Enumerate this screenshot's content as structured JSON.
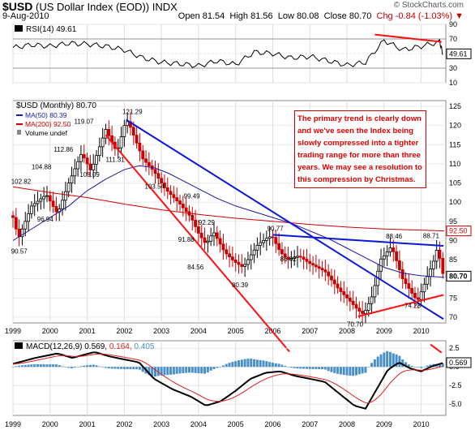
{
  "header": {
    "ticker": "$USD",
    "name": "(US Dollar Index (EOD))",
    "exchange": "INDX",
    "date": "9-Aug-2010",
    "watermark": "© StockCharts.com",
    "open": "Open 81.54",
    "high": "High 81.56",
    "low": "Low 80.08",
    "close": "Close 80.70",
    "chg": "Chg -0.84 (-1.03%)",
    "chg_symbol": "▼"
  },
  "rsi": {
    "label": "RSI(14) 49.61",
    "last": "49.61",
    "ticks": [
      "90",
      "70",
      "50",
      "30",
      "10"
    ]
  },
  "price": {
    "legend": [
      "$USD (Monthly) 80.70",
      "MA(50) 80.39",
      "MA(200) 92.50",
      "Volume undef"
    ],
    "last_label": "80.70",
    "ma200_label": "92.50",
    "ticks": [
      "125",
      "120",
      "115",
      "110",
      "105",
      "100",
      "95",
      "90",
      "85",
      "80",
      "75",
      "70"
    ],
    "annotations": [
      "121.29",
      "119.07",
      "112.86",
      "111.31",
      "108.09",
      "104.88",
      "103.54",
      "102.82",
      "99.49",
      "96.94",
      "92.29",
      "91.88",
      "90.77",
      "90.57",
      "88.71",
      "88.46",
      "86.02",
      "84.56",
      "80.39",
      "74.23",
      "70.70"
    ]
  },
  "note": "The primary trend is clearly down and we've seen the Index being slowly compressed into a tighter trading range for more than three years. We may see a resolution to this compression by Christmas.",
  "macd": {
    "label_a": "MACD(12,26,9) 0.569,",
    "label_b": "0.164,",
    "label_c": "0.405",
    "last": "0.569",
    "ticks": [
      "2.5",
      "0.0",
      "-2.5",
      "-5.0"
    ]
  },
  "x_years": [
    "1999",
    "2000",
    "2001",
    "2002",
    "2003",
    "2004",
    "2005",
    "2006",
    "2007",
    "2008",
    "2009",
    "2010"
  ],
  "colors": {
    "up": "#000000",
    "down": "#cc0000",
    "ma50": "#1a1aa0",
    "ma200": "#cc0000",
    "trend_blue": "#0a18d8",
    "trend_red": "#ff1010",
    "hist": "#4a90c8"
  },
  "chart_data": [
    {
      "type": "line",
      "title": "RSI(14)",
      "x": [
        "1999-01",
        "1999-07",
        "2000-01",
        "2000-07",
        "2001-01",
        "2001-07",
        "2002-01",
        "2002-07",
        "2003-01",
        "2003-07",
        "2004-01",
        "2004-07",
        "2005-01",
        "2005-07",
        "2006-01",
        "2006-07",
        "2007-01",
        "2007-07",
        "2008-01",
        "2008-07",
        "2009-01",
        "2009-07",
        "2010-01",
        "2010-07",
        "2010-08"
      ],
      "values": [
        58,
        62,
        60,
        64,
        63,
        60,
        55,
        44,
        38,
        36,
        33,
        40,
        35,
        52,
        50,
        44,
        46,
        40,
        34,
        38,
        68,
        55,
        60,
        66,
        49.61
      ],
      "ylim": [
        10,
        90
      ]
    },
    {
      "type": "bar",
      "title": "$USD (Monthly)",
      "x": [
        "1999",
        "2000",
        "2001",
        "2002",
        "2003",
        "2004",
        "2005",
        "2006",
        "2007",
        "2008",
        "2009",
        "2010"
      ],
      "series": [
        {
          "name": "$USD (Monthly)",
          "values": [
            101.0,
            109.0,
            116.0,
            110.0,
            98.0,
            86.0,
            89.0,
            86.0,
            80.0,
            72.0,
            82.0,
            80.7
          ]
        },
        {
          "name": "MA(50)",
          "values": [
            94.0,
            100.0,
            105.0,
            109.0,
            107.0,
            103.0,
            99.0,
            96.0,
            92.0,
            87.0,
            83.0,
            80.39
          ]
        },
        {
          "name": "MA(200)",
          "values": [
            103.0,
            101.5,
            100.0,
            99.0,
            98.0,
            97.0,
            96.0,
            95.2,
            94.5,
            93.8,
            93.0,
            92.5
          ]
        }
      ],
      "ylim": [
        70,
        125
      ]
    },
    {
      "type": "bar",
      "title": "MACD(12,26,9)",
      "x": [
        "1999",
        "2000",
        "2001",
        "2002",
        "2003",
        "2004",
        "2005",
        "2006",
        "2007",
        "2008",
        "2009",
        "2010"
      ],
      "series": [
        {
          "name": "MACD",
          "values": [
            0.5,
            1.5,
            2.0,
            1.0,
            -3.0,
            -5.0,
            -2.5,
            -1.0,
            -2.0,
            -5.5,
            -0.5,
            0.569
          ]
        },
        {
          "name": "Signal",
          "values": [
            0.3,
            1.2,
            1.8,
            1.5,
            -1.5,
            -4.0,
            -3.5,
            -1.5,
            -1.5,
            -4.5,
            -1.5,
            0.164
          ]
        },
        {
          "name": "Histogram",
          "values": [
            0.2,
            0.3,
            0.2,
            -0.5,
            -1.5,
            -1.0,
            1.0,
            0.5,
            -0.5,
            -1.0,
            1.0,
            0.405
          ]
        }
      ],
      "ylim": [
        -6.5,
        3.5
      ]
    }
  ]
}
